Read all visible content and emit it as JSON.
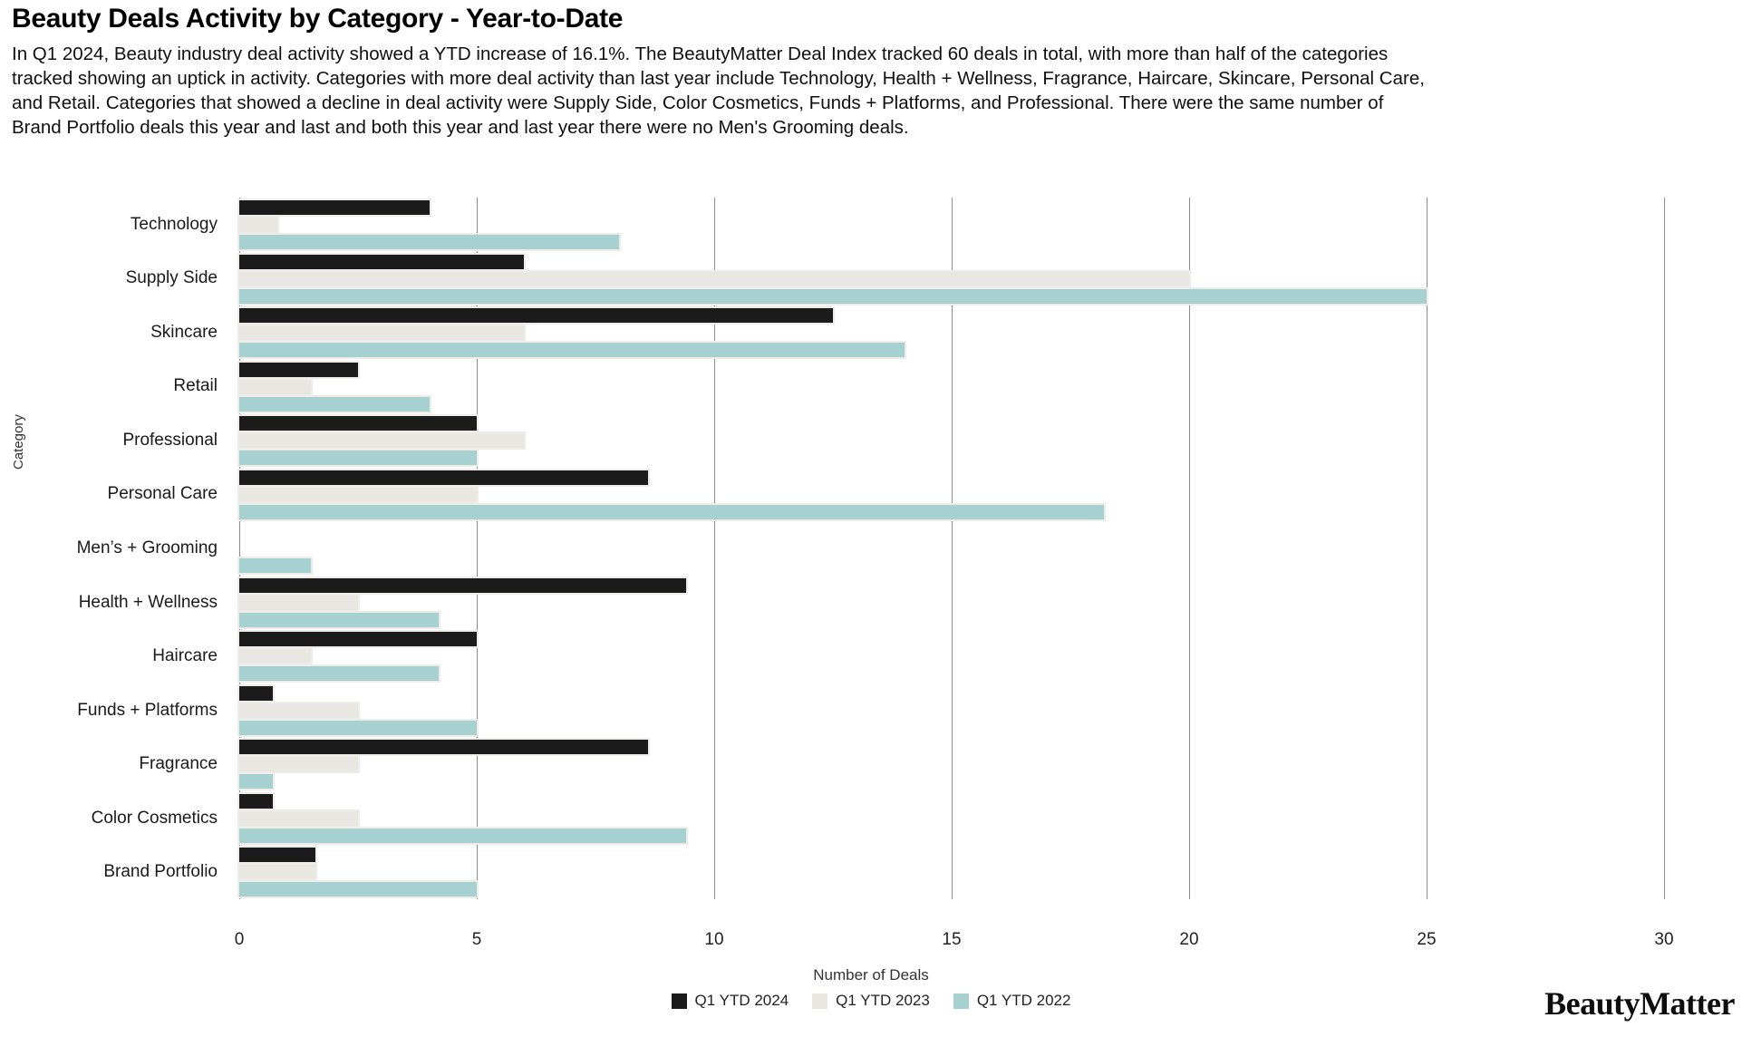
{
  "title": "Beauty Deals Activity by Category - Year-to-Date",
  "description": "In Q1 2024, Beauty industry deal activity showed a YTD increase of 16.1%. The BeautyMatter Deal Index tracked 60 deals in total, with more than half of the categories tracked showing an uptick in activity. Categories with more deal activity than last year include Technology, Health + Wellness, Fragrance, Haircare, Skincare, Personal Care, and Retail. Categories that showed a decline in deal activity were Supply Side, Color Cosmetics, Funds + Platforms, and Professional. There were the same number of Brand Portfolio deals this year and last and both this year and last year there were no Men's Grooming deals.",
  "chart_data": {
    "type": "bar",
    "orientation": "horizontal",
    "title": "Beauty Deals Activity by Category - Year-to-Date",
    "xlabel": "Number of Deals",
    "ylabel": "Category",
    "xlim": [
      0,
      30
    ],
    "xticks": [
      0,
      5,
      10,
      15,
      20,
      25,
      30
    ],
    "grid": true,
    "legend_position": "bottom-center",
    "categories": [
      "Technology",
      "Supply Side",
      "Skincare",
      "Retail",
      "Professional",
      "Personal Care",
      "Men’s + Grooming",
      "Health + Wellness",
      "Haircare",
      "Funds + Platforms",
      "Fragrance",
      "Color Cosmetics",
      "Brand Portfolio"
    ],
    "series": [
      {
        "name": "Q1 YTD 2024",
        "color": "#1b1b1b",
        "values": [
          4,
          6,
          12.5,
          2.5,
          5,
          8.6,
          0,
          9.4,
          5,
          0.7,
          8.6,
          0.7,
          1.6
        ]
      },
      {
        "name": "Q1 YTD 2023",
        "color": "#e9e7e1",
        "values": [
          0.8,
          20,
          6,
          1.5,
          6,
          5,
          0,
          2.5,
          1.5,
          2.5,
          2.5,
          2.5,
          1.6
        ]
      },
      {
        "name": "Q1 YTD 2022",
        "color": "#a7d1d0",
        "values": [
          8,
          25,
          14,
          4,
          5,
          18.2,
          1.5,
          4.2,
          4.2,
          5,
          0.7,
          9.4,
          5
        ]
      }
    ]
  },
  "footer": {
    "brand": "BeautyMatter"
  }
}
